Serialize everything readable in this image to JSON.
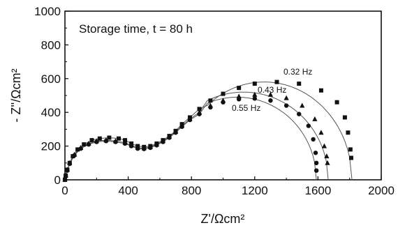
{
  "chart_data": {
    "type": "scatter",
    "xlabel": "Z'/Ωcm²",
    "ylabel": "- Z''/Ωcm²",
    "xlim": [
      0,
      2000
    ],
    "ylim": [
      0,
      1000
    ],
    "xticks": [
      0,
      400,
      800,
      1200,
      1600,
      2000
    ],
    "yticks": [
      0,
      200,
      400,
      600,
      800,
      1000
    ],
    "xtick_labels": [
      "0",
      "400",
      "800",
      "1200",
      "1600",
      "2000"
    ],
    "ytick_labels": [
      "0",
      "200",
      "400",
      "600",
      "800",
      "1000"
    ],
    "grid": false,
    "annotations": {
      "storage_time": "Storage time, t  = 80 h"
    },
    "series": [
      {
        "name": "0.32 Hz",
        "marker": "square",
        "points": [
          [
            0,
            0
          ],
          [
            5,
            25
          ],
          [
            15,
            60
          ],
          [
            30,
            100
          ],
          [
            50,
            140
          ],
          [
            80,
            180
          ],
          [
            120,
            210
          ],
          [
            170,
            235
          ],
          [
            220,
            245
          ],
          [
            280,
            250
          ],
          [
            340,
            245
          ],
          [
            380,
            235
          ],
          [
            420,
            215
          ],
          [
            460,
            200
          ],
          [
            500,
            195
          ],
          [
            540,
            200
          ],
          [
            580,
            215
          ],
          [
            620,
            235
          ],
          [
            660,
            260
          ],
          [
            700,
            290
          ],
          [
            740,
            330
          ],
          [
            790,
            370
          ],
          [
            850,
            420
          ],
          [
            920,
            470
          ],
          [
            1000,
            510
          ],
          [
            1100,
            545
          ],
          [
            1200,
            570
          ],
          [
            1340,
            580
          ],
          [
            1480,
            570
          ],
          [
            1620,
            530
          ],
          [
            1720,
            460
          ],
          [
            1770,
            370
          ],
          [
            1790,
            280
          ],
          [
            1805,
            180
          ],
          [
            1810,
            130
          ]
        ],
        "fit": {
          "cx": 1260,
          "r": 555,
          "ymax": 580
        }
      },
      {
        "name": "0.43 Hz",
        "marker": "triangle",
        "points": [
          [
            0,
            0
          ],
          [
            5,
            25
          ],
          [
            15,
            60
          ],
          [
            30,
            100
          ],
          [
            60,
            150
          ],
          [
            100,
            190
          ],
          [
            150,
            215
          ],
          [
            200,
            230
          ],
          [
            260,
            235
          ],
          [
            320,
            230
          ],
          [
            380,
            220
          ],
          [
            420,
            205
          ],
          [
            460,
            190
          ],
          [
            500,
            188
          ],
          [
            540,
            195
          ],
          [
            580,
            210
          ],
          [
            620,
            230
          ],
          [
            660,
            255
          ],
          [
            700,
            285
          ],
          [
            740,
            320
          ],
          [
            790,
            360
          ],
          [
            850,
            400
          ],
          [
            920,
            440
          ],
          [
            1000,
            470
          ],
          [
            1100,
            495
          ],
          [
            1200,
            505
          ],
          [
            1300,
            505
          ],
          [
            1400,
            485
          ],
          [
            1500,
            440
          ],
          [
            1580,
            360
          ],
          [
            1620,
            280
          ],
          [
            1640,
            200
          ],
          [
            1655,
            140
          ],
          [
            1660,
            100
          ]
        ],
        "fit": {
          "cx": 1130,
          "r": 535,
          "ymax": 520
        }
      },
      {
        "name": "0.55 Hz",
        "marker": "circle",
        "points": [
          [
            0,
            0
          ],
          [
            5,
            20
          ],
          [
            15,
            55
          ],
          [
            30,
            95
          ],
          [
            60,
            145
          ],
          [
            100,
            185
          ],
          [
            150,
            210
          ],
          [
            200,
            225
          ],
          [
            260,
            230
          ],
          [
            320,
            225
          ],
          [
            380,
            215
          ],
          [
            420,
            200
          ],
          [
            460,
            185
          ],
          [
            500,
            183
          ],
          [
            540,
            190
          ],
          [
            580,
            205
          ],
          [
            620,
            225
          ],
          [
            660,
            250
          ],
          [
            700,
            280
          ],
          [
            740,
            315
          ],
          [
            790,
            355
          ],
          [
            850,
            390
          ],
          [
            920,
            430
          ],
          [
            1000,
            460
          ],
          [
            1100,
            478
          ],
          [
            1200,
            482
          ],
          [
            1300,
            470
          ],
          [
            1400,
            440
          ],
          [
            1480,
            390
          ],
          [
            1540,
            320
          ],
          [
            1570,
            240
          ],
          [
            1585,
            160
          ],
          [
            1590,
            100
          ],
          [
            1590,
            55
          ]
        ],
        "fit": {
          "cx": 1090,
          "r": 500,
          "ymax": 490
        }
      }
    ]
  }
}
